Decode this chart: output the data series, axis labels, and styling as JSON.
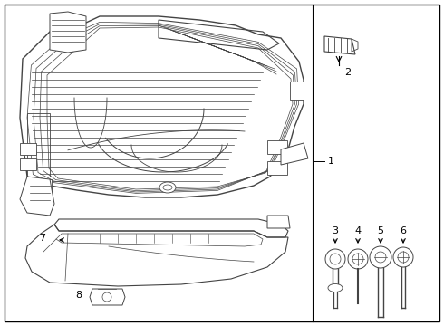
{
  "background_color": "#ffffff",
  "border_color": "#000000",
  "line_color": "#444444",
  "fig_width": 4.9,
  "fig_height": 3.6,
  "dpi": 100
}
